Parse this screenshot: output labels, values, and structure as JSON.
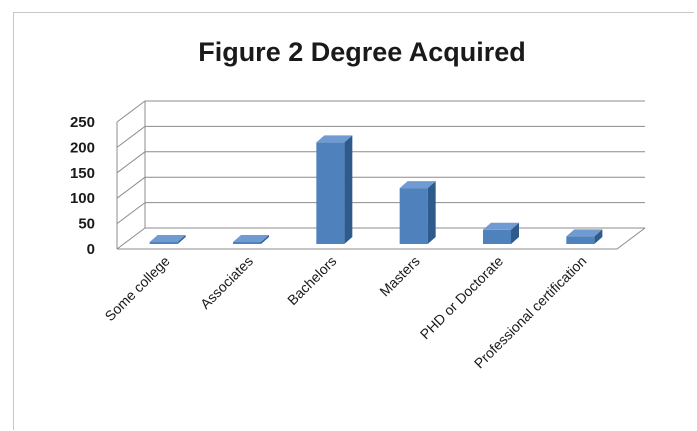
{
  "chart_data": {
    "type": "bar",
    "title": "Figure 2 Degree Acquired",
    "xlabel": "",
    "ylabel": "",
    "categories": [
      "Some college",
      "Associates",
      "Bachelors",
      "Masters",
      "PHD or Doctorate",
      "Professional certification"
    ],
    "values": [
      2,
      3,
      200,
      110,
      28,
      15
    ],
    "ylim": [
      0,
      250
    ],
    "yticks": [
      "0",
      "50",
      "100",
      "150",
      "200",
      "250"
    ],
    "grid": true,
    "legend": "none",
    "style": "3d-column",
    "bar_color": "#4f81bd"
  }
}
